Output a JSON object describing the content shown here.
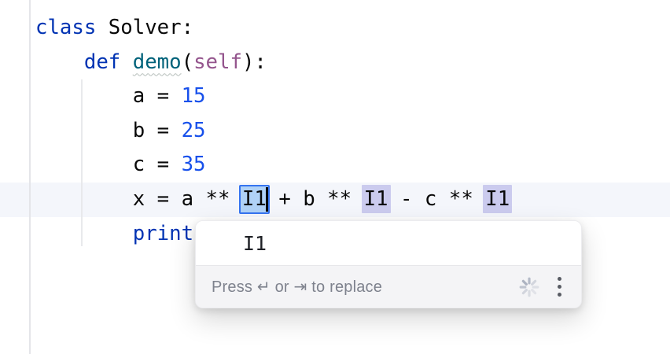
{
  "app": {
    "kind": "code-editor",
    "language": "python"
  },
  "colors": {
    "keyword": "#0033b3",
    "number": "#1750eb",
    "function_name": "#00627a",
    "self_param": "#94558d",
    "plain_text": "#080808",
    "current_line_bg": "#f4f6fb",
    "active_segment_fill": "#b0d2f7",
    "active_segment_border": "#3574f0",
    "occurrence_fill": "#cbcbee"
  },
  "editor": {
    "current_line_index": 5,
    "lines": [
      {
        "segments": [
          {
            "t": "class",
            "c": "kw"
          },
          {
            "t": " Solver:",
            "c": "pl"
          }
        ]
      },
      {
        "segments": [
          {
            "t": "    ",
            "c": "pl"
          },
          {
            "t": "def",
            "c": "kw"
          },
          {
            "t": " ",
            "c": "pl"
          },
          {
            "t": "demo",
            "c": "fn",
            "sq": true
          },
          {
            "t": "(",
            "c": "pl"
          },
          {
            "t": "self",
            "c": "slf"
          },
          {
            "t": "):",
            "c": "pl"
          }
        ]
      },
      {
        "segments": [
          {
            "t": "        a = ",
            "c": "pl"
          },
          {
            "t": "15",
            "c": "num"
          }
        ]
      },
      {
        "segments": [
          {
            "t": "        b = ",
            "c": "pl"
          },
          {
            "t": "25",
            "c": "num"
          }
        ]
      },
      {
        "segments": [
          {
            "t": "        c = ",
            "c": "pl"
          },
          {
            "t": "35",
            "c": "num"
          }
        ]
      },
      {
        "current": true,
        "segments": [
          {
            "t": "        x = a ** ",
            "c": "pl"
          },
          {
            "t": "I1",
            "c": "pl",
            "box": "active"
          },
          {
            "t": " + b ** ",
            "c": "pl"
          },
          {
            "t": "I1",
            "c": "pl",
            "box": "occ"
          },
          {
            "t": " - c ** ",
            "c": "pl"
          },
          {
            "t": "I1",
            "c": "pl",
            "box": "occ"
          }
        ]
      },
      {
        "segments": [
          {
            "t": "        ",
            "c": "pl"
          },
          {
            "t": "print",
            "c": "kw"
          }
        ]
      }
    ]
  },
  "completion_popup": {
    "items": [
      {
        "label": "I1"
      }
    ],
    "hint": "Press ↵ or ⇥ to replace",
    "icons": [
      "loading-spinner-icon",
      "kebab-menu-icon"
    ]
  }
}
